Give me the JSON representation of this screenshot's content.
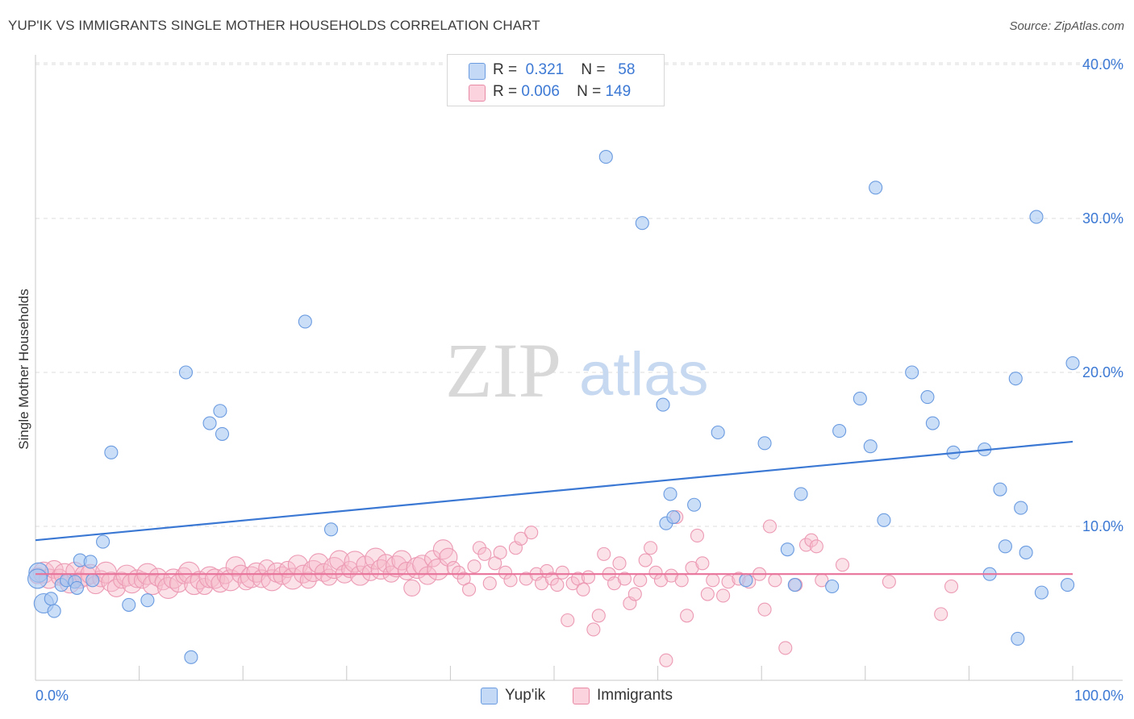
{
  "title": "YUP'IK VS IMMIGRANTS SINGLE MOTHER HOUSEHOLDS CORRELATION CHART",
  "source": "Source: ZipAtlas.com",
  "watermark": {
    "zip": "ZIP",
    "atlas": "atlas"
  },
  "legend": {
    "rows": [
      {
        "r_label": "R =",
        "r_value": "0.321",
        "n_label": "N =",
        "n_value": "58",
        "color": "#a9c8f2",
        "border": "#6a9be0"
      },
      {
        "r_label": "R =",
        "r_value": "0.006",
        "n_label": "N =",
        "n_value": "149",
        "color": "#f7bccd",
        "border": "#e88aa6"
      }
    ]
  },
  "bottom_legend": [
    {
      "label": "Yup'ik",
      "color": "#a9c8f2",
      "border": "#6a9be0"
    },
    {
      "label": "Immigrants",
      "color": "#f7bccd",
      "border": "#e88aa6"
    }
  ],
  "chart_data": {
    "type": "scatter",
    "ylabel": "Single Mother Households",
    "xlim": [
      0,
      100
    ],
    "ylim": [
      0,
      40
    ],
    "x_ticks": [
      "0.0%",
      "100.0%"
    ],
    "y_ticks": [
      {
        "value": 10,
        "label": "10.0%"
      },
      {
        "value": 20,
        "label": "20.0%"
      },
      {
        "value": 30,
        "label": "30.0%"
      },
      {
        "value": 40,
        "label": "40.0%"
      }
    ],
    "colors": {
      "yupik": "#3b78d4",
      "immigrants": "#e8739a",
      "tick_label": "#3b78d4"
    },
    "series": [
      {
        "name": "Yup'ik",
        "trend": {
          "x": [
            0,
            100
          ],
          "y": [
            9.1,
            15.5
          ]
        },
        "points": [
          [
            0.3,
            7.0
          ],
          [
            0.8,
            5.0
          ],
          [
            1.5,
            5.3
          ],
          [
            1.8,
            4.5
          ],
          [
            2.5,
            6.2
          ],
          [
            3.0,
            6.5
          ],
          [
            3.8,
            6.4
          ],
          [
            4.0,
            6.0
          ],
          [
            4.3,
            7.8
          ],
          [
            5.3,
            7.7
          ],
          [
            5.5,
            6.5
          ],
          [
            6.5,
            9.0
          ],
          [
            7.3,
            14.8
          ],
          [
            9.0,
            4.9
          ],
          [
            10.8,
            5.2
          ],
          [
            14.5,
            20.0
          ],
          [
            15.0,
            1.5
          ],
          [
            16.8,
            16.7
          ],
          [
            17.8,
            17.5
          ],
          [
            18.0,
            16.0
          ],
          [
            26.0,
            23.3
          ],
          [
            28.5,
            9.8
          ],
          [
            55.0,
            34.0
          ],
          [
            58.5,
            29.7
          ],
          [
            60.5,
            17.9
          ],
          [
            60.8,
            10.2
          ],
          [
            61.2,
            12.1
          ],
          [
            61.5,
            10.6
          ],
          [
            63.5,
            11.4
          ],
          [
            65.8,
            16.1
          ],
          [
            68.5,
            6.5
          ],
          [
            70.3,
            15.4
          ],
          [
            72.5,
            8.5
          ],
          [
            73.2,
            6.2
          ],
          [
            73.8,
            12.1
          ],
          [
            76.8,
            6.1
          ],
          [
            77.5,
            16.2
          ],
          [
            79.5,
            18.3
          ],
          [
            80.5,
            15.2
          ],
          [
            81.0,
            32.0
          ],
          [
            81.8,
            10.4
          ],
          [
            84.5,
            20.0
          ],
          [
            86.0,
            18.4
          ],
          [
            86.5,
            16.7
          ],
          [
            88.5,
            14.8
          ],
          [
            91.5,
            15.0
          ],
          [
            92.0,
            6.9
          ],
          [
            93.0,
            12.4
          ],
          [
            93.5,
            8.7
          ],
          [
            94.5,
            19.6
          ],
          [
            94.7,
            2.7
          ],
          [
            95.0,
            11.2
          ],
          [
            95.5,
            8.3
          ],
          [
            96.5,
            30.1
          ],
          [
            97.0,
            5.7
          ],
          [
            99.5,
            6.2
          ],
          [
            100.0,
            20.6
          ],
          [
            0.2,
            6.6
          ]
        ]
      },
      {
        "name": "Immigrants",
        "trend": {
          "x": [
            0,
            100
          ],
          "y": [
            6.9,
            6.9
          ]
        },
        "points": [
          [
            0.2,
            6.8
          ],
          [
            0.8,
            7.0
          ],
          [
            1.3,
            6.6
          ],
          [
            1.8,
            7.2
          ],
          [
            2.3,
            6.7
          ],
          [
            2.8,
            6.9
          ],
          [
            3.3,
            6.3
          ],
          [
            3.8,
            7.1
          ],
          [
            4.3,
            6.5
          ],
          [
            4.8,
            6.8
          ],
          [
            5.3,
            6.9
          ],
          [
            5.8,
            6.2
          ],
          [
            6.3,
            6.6
          ],
          [
            6.8,
            7.0
          ],
          [
            7.3,
            6.4
          ],
          [
            7.8,
            6.0
          ],
          [
            8.3,
            6.5
          ],
          [
            8.8,
            6.8
          ],
          [
            9.3,
            6.3
          ],
          [
            9.8,
            6.6
          ],
          [
            10.3,
            6.5
          ],
          [
            10.8,
            6.9
          ],
          [
            11.3,
            6.2
          ],
          [
            11.8,
            6.7
          ],
          [
            12.3,
            6.4
          ],
          [
            12.8,
            6.0
          ],
          [
            13.3,
            6.6
          ],
          [
            13.8,
            6.3
          ],
          [
            14.3,
            6.8
          ],
          [
            14.8,
            7.0
          ],
          [
            15.3,
            6.2
          ],
          [
            15.8,
            6.5
          ],
          [
            16.3,
            6.1
          ],
          [
            16.8,
            6.7
          ],
          [
            17.3,
            6.6
          ],
          [
            17.8,
            6.3
          ],
          [
            18.3,
            6.8
          ],
          [
            18.8,
            6.5
          ],
          [
            19.3,
            7.4
          ],
          [
            19.8,
            6.9
          ],
          [
            20.3,
            6.4
          ],
          [
            20.8,
            6.7
          ],
          [
            21.3,
            7.0
          ],
          [
            21.8,
            6.6
          ],
          [
            22.3,
            7.3
          ],
          [
            22.8,
            6.5
          ],
          [
            23.3,
            7.0
          ],
          [
            23.8,
            6.8
          ],
          [
            24.3,
            7.2
          ],
          [
            24.8,
            6.6
          ],
          [
            25.3,
            7.5
          ],
          [
            25.8,
            6.9
          ],
          [
            26.3,
            6.5
          ],
          [
            26.8,
            7.1
          ],
          [
            27.3,
            7.6
          ],
          [
            27.8,
            7.0
          ],
          [
            28.3,
            6.7
          ],
          [
            28.8,
            7.3
          ],
          [
            29.3,
            7.8
          ],
          [
            29.8,
            6.9
          ],
          [
            30.3,
            7.2
          ],
          [
            30.8,
            7.7
          ],
          [
            31.3,
            6.8
          ],
          [
            31.8,
            7.5
          ],
          [
            32.3,
            7.0
          ],
          [
            32.8,
            7.9
          ],
          [
            33.3,
            7.2
          ],
          [
            33.8,
            7.6
          ],
          [
            34.3,
            6.9
          ],
          [
            34.8,
            7.4
          ],
          [
            35.3,
            7.8
          ],
          [
            35.8,
            7.1
          ],
          [
            36.3,
            6.0
          ],
          [
            36.8,
            7.3
          ],
          [
            37.3,
            7.5
          ],
          [
            37.8,
            6.8
          ],
          [
            38.3,
            7.9
          ],
          [
            38.8,
            7.2
          ],
          [
            39.3,
            8.5
          ],
          [
            39.8,
            8.0
          ],
          [
            40.3,
            7.3
          ],
          [
            40.8,
            7.0
          ],
          [
            41.3,
            6.6
          ],
          [
            41.8,
            5.9
          ],
          [
            42.3,
            7.4
          ],
          [
            42.8,
            8.6
          ],
          [
            43.3,
            8.2
          ],
          [
            43.8,
            6.3
          ],
          [
            44.3,
            7.6
          ],
          [
            44.8,
            8.3
          ],
          [
            45.3,
            7.0
          ],
          [
            45.8,
            6.5
          ],
          [
            46.3,
            8.6
          ],
          [
            46.8,
            9.2
          ],
          [
            47.3,
            6.6
          ],
          [
            47.8,
            9.6
          ],
          [
            48.3,
            6.9
          ],
          [
            48.8,
            6.3
          ],
          [
            49.3,
            7.1
          ],
          [
            49.8,
            6.6
          ],
          [
            50.3,
            6.2
          ],
          [
            50.8,
            7.0
          ],
          [
            51.3,
            3.9
          ],
          [
            51.8,
            6.3
          ],
          [
            52.3,
            6.6
          ],
          [
            52.8,
            5.9
          ],
          [
            53.3,
            6.7
          ],
          [
            53.8,
            3.3
          ],
          [
            54.3,
            4.2
          ],
          [
            54.8,
            8.2
          ],
          [
            55.3,
            6.9
          ],
          [
            55.8,
            6.3
          ],
          [
            56.3,
            7.6
          ],
          [
            56.8,
            6.6
          ],
          [
            57.3,
            5.0
          ],
          [
            57.8,
            5.6
          ],
          [
            58.3,
            6.5
          ],
          [
            58.8,
            7.8
          ],
          [
            59.3,
            8.6
          ],
          [
            59.8,
            7.0
          ],
          [
            60.3,
            6.5
          ],
          [
            60.8,
            1.3
          ],
          [
            61.3,
            6.8
          ],
          [
            61.8,
            10.6
          ],
          [
            62.3,
            6.5
          ],
          [
            62.8,
            4.2
          ],
          [
            63.3,
            7.3
          ],
          [
            63.8,
            9.4
          ],
          [
            64.3,
            7.6
          ],
          [
            64.8,
            5.6
          ],
          [
            65.3,
            6.5
          ],
          [
            66.3,
            5.5
          ],
          [
            66.8,
            6.4
          ],
          [
            67.8,
            6.6
          ],
          [
            68.8,
            6.4
          ],
          [
            69.8,
            6.9
          ],
          [
            70.3,
            4.6
          ],
          [
            70.8,
            10.0
          ],
          [
            71.3,
            6.5
          ],
          [
            72.3,
            2.1
          ],
          [
            73.3,
            6.2
          ],
          [
            74.3,
            8.8
          ],
          [
            74.8,
            9.1
          ],
          [
            75.3,
            8.7
          ],
          [
            75.8,
            6.5
          ],
          [
            77.8,
            7.5
          ],
          [
            82.3,
            6.4
          ],
          [
            87.3,
            4.3
          ],
          [
            88.3,
            6.1
          ]
        ]
      }
    ]
  }
}
